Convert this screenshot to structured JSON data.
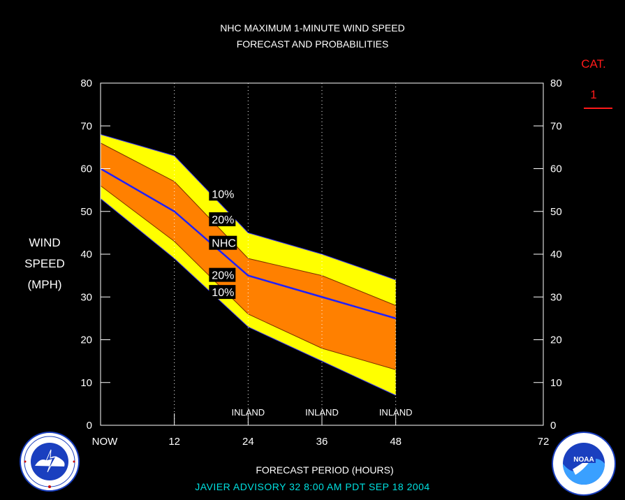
{
  "header": {
    "title_line1": "NHC MAXIMUM 1-MINUTE WIND SPEED",
    "title_line2": "FORECAST AND PROBABILITIES"
  },
  "y_axis_label": [
    "WIND",
    "SPEED",
    "(MPH)"
  ],
  "category": {
    "label": "CAT.",
    "value": "1"
  },
  "footer": "JAVIER    ADVISORY  32 8:00  AM  PDT  SEP  18  2004",
  "colors": {
    "outer_band": "#ffff00",
    "inner_band": "#ff8000",
    "nhc_line": "#2020ff",
    "category": "#ff1a1a",
    "footer": "#00e0e0"
  },
  "logos": {
    "left": "nws-logo",
    "right": "noaa-logo"
  },
  "chart_data": {
    "type": "area",
    "xlabel": "FORECAST PERIOD (HOURS)",
    "ylabel": "WIND SPEED (MPH)",
    "xlim": [
      0,
      72
    ],
    "ylim": [
      0,
      80
    ],
    "x_ticks": [
      {
        "value": 0,
        "label": "NOW"
      },
      {
        "value": 12,
        "label": "12"
      },
      {
        "value": 24,
        "label": "24"
      },
      {
        "value": 36,
        "label": "36"
      },
      {
        "value": 48,
        "label": "48"
      },
      {
        "value": 72,
        "label": "72"
      }
    ],
    "y_ticks": [
      0,
      10,
      20,
      30,
      40,
      50,
      60,
      70,
      80
    ],
    "x": [
      0,
      12,
      24,
      36,
      48
    ],
    "series": [
      {
        "name": "10%",
        "upper": [
          68,
          63,
          45,
          40,
          34
        ],
        "lower": [
          53,
          39,
          23,
          15,
          7
        ]
      },
      {
        "name": "20%",
        "upper": [
          66,
          57,
          39,
          35,
          28
        ],
        "lower": [
          56,
          43,
          26,
          18,
          13
        ]
      },
      {
        "name": "NHC",
        "values": [
          60,
          50,
          35,
          30,
          25
        ]
      }
    ],
    "annotations": [
      {
        "text": "INLAND",
        "x": 24
      },
      {
        "text": "INLAND",
        "x": 36
      },
      {
        "text": "INLAND",
        "x": 48
      }
    ],
    "band_labels": [
      {
        "text": "10%",
        "x": 19,
        "y": 54
      },
      {
        "text": "20%",
        "x": 19,
        "y": 48
      },
      {
        "text": "NHC",
        "x": 19,
        "y": 42.5
      },
      {
        "text": "20%",
        "x": 19,
        "y": 35
      },
      {
        "text": "10%",
        "x": 19,
        "y": 31
      }
    ],
    "grid": "dotted vertical at 12, 24, 36, 48"
  }
}
